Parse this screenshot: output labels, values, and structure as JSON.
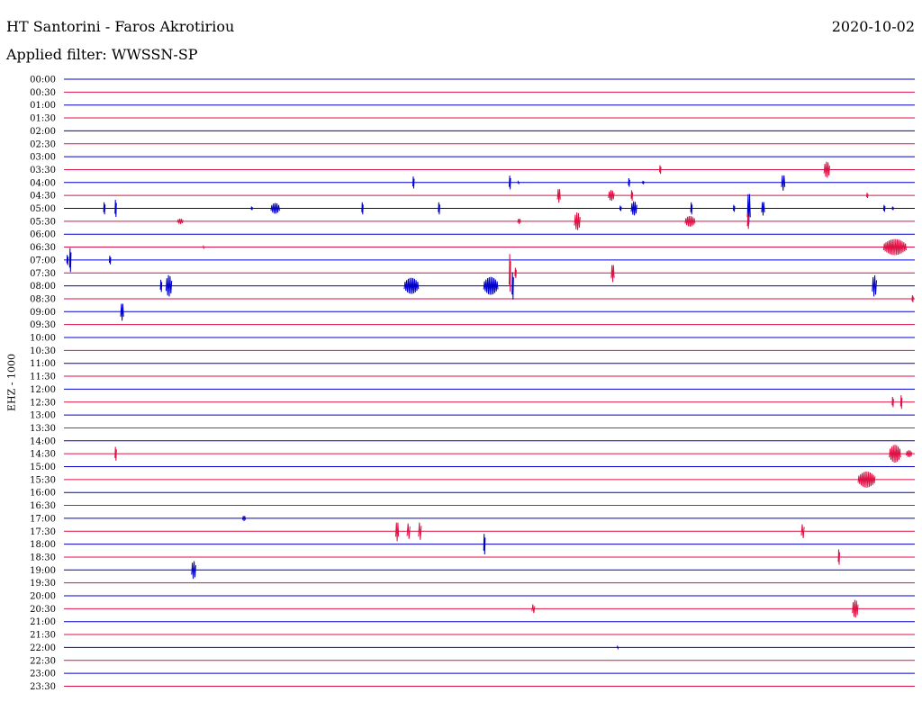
{
  "header": {
    "station": "HT Santorini - Faros Akrotiriou",
    "date": "2020-10-02",
    "filter": "Applied filter: WWSSN-SP"
  },
  "channel": "EHZ - 1000",
  "colors": {
    "even_row": "#0000cc",
    "odd_row": "#dd1144"
  },
  "chart_data": {
    "type": "helicorder",
    "title": "HT Santorini - Faros Akrotiriou",
    "ylabel": "EHZ - 1000",
    "row_minutes": 30,
    "x_range_minutes": [
      0,
      30
    ],
    "rows": [
      "00:00",
      "00:30",
      "01:00",
      "01:30",
      "02:00",
      "02:30",
      "03:00",
      "03:30",
      "04:00",
      "04:30",
      "05:00",
      "05:30",
      "06:00",
      "06:30",
      "07:00",
      "07:30",
      "08:00",
      "08:30",
      "09:00",
      "09:30",
      "10:00",
      "10:30",
      "11:00",
      "11:30",
      "12:00",
      "12:30",
      "13:00",
      "13:30",
      "14:00",
      "14:30",
      "15:00",
      "15:30",
      "16:00",
      "16:30",
      "17:00",
      "17:30",
      "18:00",
      "18:30",
      "19:00",
      "19:30",
      "20:00",
      "20:30",
      "21:00",
      "21:30",
      "22:00",
      "22:30",
      "23:00",
      "23:30"
    ],
    "events": [
      {
        "row": "03:30",
        "minute": 21.0,
        "amp": 5,
        "dur": 0.05
      },
      {
        "row": "03:30",
        "minute": 26.8,
        "amp": 9,
        "dur": 0.2
      },
      {
        "row": "04:00",
        "minute": 12.3,
        "amp": 7,
        "dur": 0.05
      },
      {
        "row": "04:00",
        "minute": 15.7,
        "amp": 8,
        "dur": 0.05
      },
      {
        "row": "04:00",
        "minute": 16.0,
        "amp": 1,
        "dur": 0.05
      },
      {
        "row": "04:00",
        "minute": 19.9,
        "amp": 5,
        "dur": 0.05
      },
      {
        "row": "04:00",
        "minute": 20.4,
        "amp": 2,
        "dur": 0.05
      },
      {
        "row": "04:00",
        "minute": 25.3,
        "amp": 9,
        "dur": 0.12
      },
      {
        "row": "04:30",
        "minute": 17.4,
        "amp": 8,
        "dur": 0.1
      },
      {
        "row": "04:30",
        "minute": 19.2,
        "amp": 6,
        "dur": 0.2
      },
      {
        "row": "04:30",
        "minute": 20.0,
        "amp": 6,
        "dur": 0.05
      },
      {
        "row": "04:30",
        "minute": 28.3,
        "amp": 3,
        "dur": 0.05
      },
      {
        "row": "05:00",
        "minute": 1.4,
        "amp": 7,
        "dur": 0.05
      },
      {
        "row": "05:00",
        "minute": 1.8,
        "amp": 10,
        "dur": 0.05
      },
      {
        "row": "05:00",
        "minute": 6.6,
        "amp": 2,
        "dur": 0.05
      },
      {
        "row": "05:00",
        "minute": 7.3,
        "amp": 6,
        "dur": 0.3
      },
      {
        "row": "05:00",
        "minute": 10.5,
        "amp": 7,
        "dur": 0.05
      },
      {
        "row": "05:00",
        "minute": 13.2,
        "amp": 7,
        "dur": 0.05
      },
      {
        "row": "05:00",
        "minute": 19.6,
        "amp": 3,
        "dur": 0.05
      },
      {
        "row": "05:00",
        "minute": 20.0,
        "amp": 8,
        "dur": 0.2
      },
      {
        "row": "05:00",
        "minute": 22.1,
        "amp": 7,
        "dur": 0.05
      },
      {
        "row": "05:00",
        "minute": 23.6,
        "amp": 4,
        "dur": 0.05
      },
      {
        "row": "05:00",
        "minute": 24.1,
        "amp": 18,
        "dur": 0.1
      },
      {
        "row": "05:00",
        "minute": 24.6,
        "amp": 8,
        "dur": 0.1
      },
      {
        "row": "05:00",
        "minute": 28.9,
        "amp": 4,
        "dur": 0.05
      },
      {
        "row": "05:00",
        "minute": 29.2,
        "amp": 2,
        "dur": 0.05
      },
      {
        "row": "05:30",
        "minute": 4.0,
        "amp": 3,
        "dur": 0.2
      },
      {
        "row": "05:30",
        "minute": 16.0,
        "amp": 3,
        "dur": 0.1
      },
      {
        "row": "05:30",
        "minute": 18.0,
        "amp": 10,
        "dur": 0.2
      },
      {
        "row": "05:30",
        "minute": 21.9,
        "amp": 6,
        "dur": 0.35
      },
      {
        "row": "05:30",
        "minute": 24.1,
        "amp": 9,
        "dur": 0.05
      },
      {
        "row": "06:30",
        "minute": 4.9,
        "amp": 1,
        "dur": 0.05
      },
      {
        "row": "06:30",
        "minute": 28.9,
        "amp": 9,
        "dur": 0.8
      },
      {
        "row": "07:00",
        "minute": 0.1,
        "amp": 6,
        "dur": 0.05
      },
      {
        "row": "07:00",
        "minute": 0.2,
        "amp": 14,
        "dur": 0.05
      },
      {
        "row": "07:00",
        "minute": 1.6,
        "amp": 5,
        "dur": 0.05
      },
      {
        "row": "07:30",
        "minute": 15.7,
        "amp": 22,
        "dur": 0.05
      },
      {
        "row": "07:30",
        "minute": 15.9,
        "amp": 6,
        "dur": 0.05
      },
      {
        "row": "07:30",
        "minute": 19.3,
        "amp": 10,
        "dur": 0.1
      },
      {
        "row": "08:00",
        "minute": 3.4,
        "amp": 7,
        "dur": 0.05
      },
      {
        "row": "08:00",
        "minute": 3.6,
        "amp": 12,
        "dur": 0.2
      },
      {
        "row": "08:00",
        "minute": 12.0,
        "amp": 9,
        "dur": 0.5
      },
      {
        "row": "08:00",
        "minute": 14.8,
        "amp": 10,
        "dur": 0.5
      },
      {
        "row": "08:00",
        "minute": 15.8,
        "amp": 16,
        "dur": 0.05
      },
      {
        "row": "08:00",
        "minute": 28.5,
        "amp": 12,
        "dur": 0.15
      },
      {
        "row": "08:30",
        "minute": 29.9,
        "amp": 4,
        "dur": 0.05
      },
      {
        "row": "09:00",
        "minute": 2.0,
        "amp": 10,
        "dur": 0.1
      },
      {
        "row": "12:30",
        "minute": 29.2,
        "amp": 6,
        "dur": 0.05
      },
      {
        "row": "12:30",
        "minute": 29.5,
        "amp": 8,
        "dur": 0.05
      },
      {
        "row": "14:30",
        "minute": 1.8,
        "amp": 8,
        "dur": 0.05
      },
      {
        "row": "14:30",
        "minute": 29.1,
        "amp": 10,
        "dur": 0.4
      },
      {
        "row": "14:30",
        "minute": 29.7,
        "amp": 4,
        "dur": 0.2
      },
      {
        "row": "15:30",
        "minute": 28.0,
        "amp": 9,
        "dur": 0.6
      },
      {
        "row": "17:00",
        "minute": 6.3,
        "amp": 3,
        "dur": 0.1
      },
      {
        "row": "17:30",
        "minute": 11.7,
        "amp": 11,
        "dur": 0.1
      },
      {
        "row": "17:30",
        "minute": 12.1,
        "amp": 9,
        "dur": 0.1
      },
      {
        "row": "17:30",
        "minute": 12.5,
        "amp": 10,
        "dur": 0.1
      },
      {
        "row": "17:30",
        "minute": 26.0,
        "amp": 8,
        "dur": 0.1
      },
      {
        "row": "18:00",
        "minute": 14.8,
        "amp": 12,
        "dur": 0.05
      },
      {
        "row": "18:30",
        "minute": 27.3,
        "amp": 9,
        "dur": 0.05
      },
      {
        "row": "19:00",
        "minute": 4.5,
        "amp": 10,
        "dur": 0.15
      },
      {
        "row": "20:30",
        "minute": 16.5,
        "amp": 5,
        "dur": 0.1
      },
      {
        "row": "20:30",
        "minute": 27.8,
        "amp": 10,
        "dur": 0.2
      },
      {
        "row": "22:00",
        "minute": 19.5,
        "amp": 1,
        "dur": 0.05
      }
    ]
  }
}
